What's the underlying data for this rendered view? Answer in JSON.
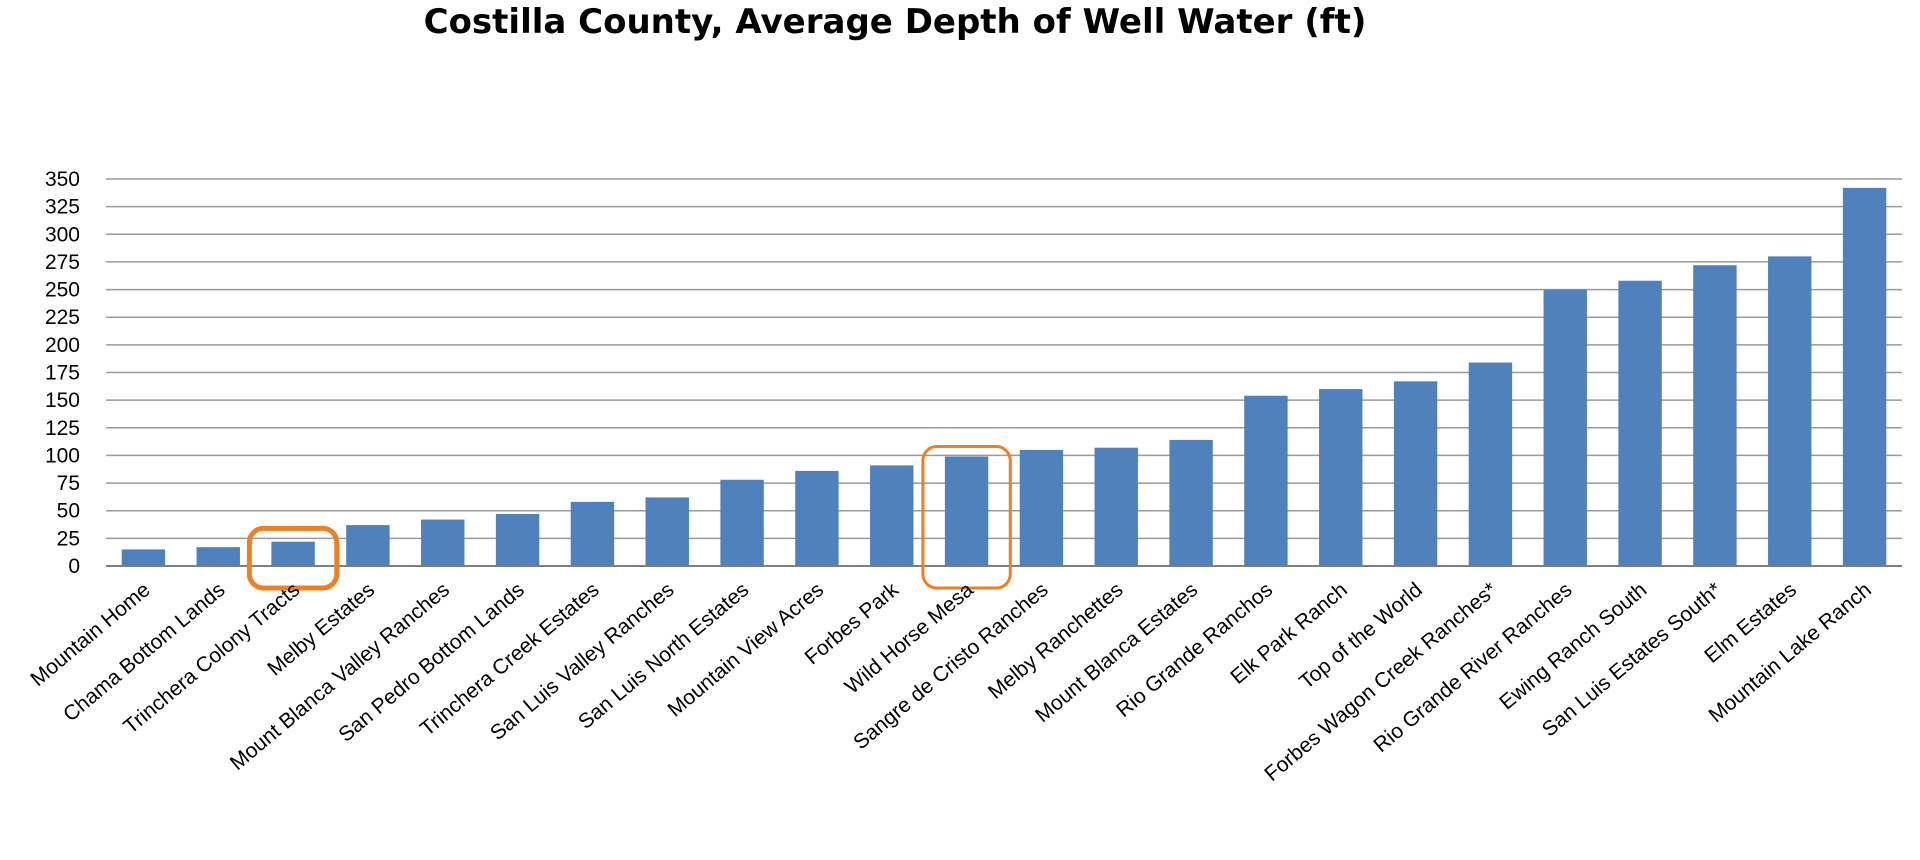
{
  "chart_data": {
    "type": "bar",
    "title": "Costilla County, Average Depth of Well Water (ft)",
    "xlabel": "",
    "ylabel": "",
    "ylim": [
      0,
      350
    ],
    "yticks": [
      0,
      25,
      50,
      75,
      100,
      125,
      150,
      175,
      200,
      225,
      250,
      275,
      300,
      325,
      350
    ],
    "grid": true,
    "bar_color": "#4f81bd",
    "highlight_color": "#f07f22",
    "highlighted_categories": [
      "Trinchera Colony Tracts",
      "Wild Horse Mesa"
    ],
    "categories": [
      "Mountain Home",
      "Chama Bottom Lands",
      "Trinchera Colony Tracts",
      "Melby Estates",
      "Mount Blanca Valley Ranches",
      "San Pedro Bottom Lands",
      "Trinchera Creek Estates",
      "San Luis Valley Ranches",
      "San Luis North Estates",
      "Mountain View Acres",
      "Forbes Park",
      "Wild Horse Mesa",
      "Sangre de Cristo Ranches",
      "Melby Ranchettes",
      "Mount Blanca Estates",
      "Rio Grande Ranchos",
      "Elk Park Ranch",
      "Top of the World",
      "Forbes Wagon Creek Ranches*",
      "Rio Grande River Ranches",
      "Ewing Ranch South",
      "San Luis Estates South*",
      "Elm Estates",
      "Mountain Lake Ranch"
    ],
    "values": [
      15,
      17,
      22,
      37,
      42,
      47,
      58,
      62,
      78,
      86,
      91,
      99,
      105,
      107,
      114,
      154,
      160,
      167,
      184,
      250,
      258,
      272,
      280,
      342
    ]
  }
}
